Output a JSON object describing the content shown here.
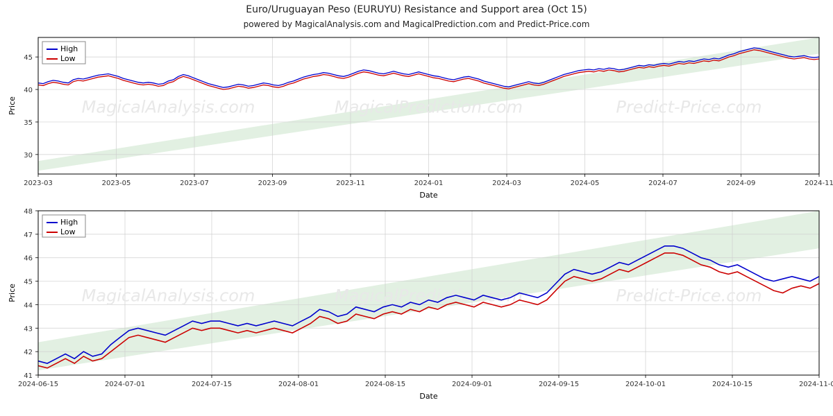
{
  "title": "Euro/Uruguayan Peso (EURUYU) Resistance and Support area (Oct 15)",
  "subtitle": "powered by MagicalAnalysis.com and MagicalPrediction.com and Predict-Price.com",
  "watermark_segments": [
    "MagicalAnalysis.com",
    "MagicalPrediction.com",
    "Predict-Price.com"
  ],
  "chart_top": {
    "type": "line",
    "background_color": "#ffffff",
    "grid_color": "#cfcfcf",
    "border_color": "#000000",
    "support_fill": "#e2f0e2",
    "xlabel": "Date",
    "ylabel": "Price",
    "ylim": [
      27,
      48
    ],
    "yticks": [
      30,
      35,
      40,
      45
    ],
    "xticks": [
      "2023-03",
      "2023-05",
      "2023-07",
      "2023-09",
      "2023-11",
      "2024-01",
      "2024-03",
      "2024-05",
      "2024-07",
      "2024-09",
      "2024-11"
    ],
    "legend": [
      "High",
      "Low"
    ],
    "colors": {
      "high": "#0000cd",
      "low": "#cc0000"
    },
    "line_width": 1.3,
    "support_band": {
      "y_left_low": 27.5,
      "y_left_high": 29.0,
      "y_right_low": 45.5,
      "y_right_high": 48.0
    },
    "series_high": [
      41.0,
      40.9,
      41.2,
      41.4,
      41.3,
      41.1,
      41.0,
      41.5,
      41.7,
      41.6,
      41.8,
      42.0,
      42.2,
      42.3,
      42.4,
      42.2,
      42.0,
      41.7,
      41.5,
      41.3,
      41.1,
      41.0,
      41.1,
      41.0,
      40.8,
      40.9,
      41.3,
      41.5,
      42.0,
      42.3,
      42.1,
      41.8,
      41.5,
      41.2,
      40.9,
      40.7,
      40.5,
      40.3,
      40.4,
      40.6,
      40.8,
      40.7,
      40.5,
      40.6,
      40.8,
      41.0,
      40.9,
      40.7,
      40.6,
      40.8,
      41.1,
      41.3,
      41.6,
      41.9,
      42.1,
      42.3,
      42.4,
      42.6,
      42.5,
      42.3,
      42.1,
      42.0,
      42.2,
      42.5,
      42.8,
      43.0,
      42.9,
      42.7,
      42.5,
      42.4,
      42.6,
      42.8,
      42.6,
      42.4,
      42.3,
      42.5,
      42.7,
      42.5,
      42.3,
      42.1,
      42.0,
      41.8,
      41.6,
      41.5,
      41.7,
      41.9,
      42.0,
      41.8,
      41.6,
      41.3,
      41.1,
      40.9,
      40.7,
      40.5,
      40.4,
      40.6,
      40.8,
      41.0,
      41.2,
      41.0,
      40.9,
      41.1,
      41.4,
      41.7,
      42.0,
      42.3,
      42.5,
      42.7,
      42.9,
      43.0,
      43.1,
      43.0,
      43.2,
      43.1,
      43.3,
      43.2,
      43.0,
      43.1,
      43.3,
      43.5,
      43.7,
      43.6,
      43.8,
      43.7,
      43.9,
      44.0,
      43.9,
      44.1,
      44.3,
      44.2,
      44.4,
      44.3,
      44.5,
      44.7,
      44.6,
      44.8,
      44.7,
      45.0,
      45.3,
      45.5,
      45.8,
      46.0,
      46.2,
      46.4,
      46.3,
      46.1,
      45.9,
      45.7,
      45.5,
      45.3,
      45.1,
      45.0,
      45.1,
      45.2,
      45.0,
      44.9,
      45.0
    ],
    "series_low": [
      40.7,
      40.6,
      40.9,
      41.1,
      41.0,
      40.8,
      40.7,
      41.2,
      41.4,
      41.3,
      41.5,
      41.7,
      41.9,
      42.0,
      42.1,
      41.9,
      41.7,
      41.4,
      41.2,
      41.0,
      40.8,
      40.7,
      40.8,
      40.7,
      40.5,
      40.6,
      41.0,
      41.2,
      41.7,
      42.0,
      41.8,
      41.5,
      41.2,
      40.9,
      40.6,
      40.4,
      40.2,
      40.0,
      40.1,
      40.3,
      40.5,
      40.4,
      40.2,
      40.3,
      40.5,
      40.7,
      40.6,
      40.4,
      40.3,
      40.5,
      40.8,
      41.0,
      41.3,
      41.6,
      41.8,
      42.0,
      42.1,
      42.3,
      42.2,
      42.0,
      41.8,
      41.7,
      41.9,
      42.2,
      42.5,
      42.7,
      42.6,
      42.4,
      42.2,
      42.1,
      42.3,
      42.5,
      42.3,
      42.1,
      42.0,
      42.2,
      42.4,
      42.2,
      42.0,
      41.8,
      41.7,
      41.5,
      41.3,
      41.2,
      41.4,
      41.6,
      41.7,
      41.5,
      41.3,
      41.0,
      40.8,
      40.6,
      40.4,
      40.2,
      40.1,
      40.3,
      40.5,
      40.7,
      40.9,
      40.7,
      40.6,
      40.8,
      41.1,
      41.4,
      41.7,
      42.0,
      42.2,
      42.4,
      42.6,
      42.7,
      42.8,
      42.7,
      42.9,
      42.8,
      43.0,
      42.9,
      42.7,
      42.8,
      43.0,
      43.2,
      43.4,
      43.3,
      43.5,
      43.4,
      43.6,
      43.7,
      43.6,
      43.8,
      44.0,
      43.9,
      44.1,
      44.0,
      44.2,
      44.4,
      44.3,
      44.5,
      44.4,
      44.7,
      45.0,
      45.2,
      45.5,
      45.7,
      45.9,
      46.1,
      46.0,
      45.8,
      45.6,
      45.4,
      45.2,
      45.0,
      44.8,
      44.7,
      44.8,
      44.9,
      44.7,
      44.6,
      44.7
    ]
  },
  "chart_bottom": {
    "type": "line",
    "background_color": "#ffffff",
    "grid_color": "#cfcfcf",
    "border_color": "#000000",
    "support_fill": "#e2f0e2",
    "xlabel": "Date",
    "ylabel": "Price",
    "ylim": [
      41,
      48
    ],
    "yticks": [
      41,
      42,
      43,
      44,
      45,
      46,
      47,
      48
    ],
    "xticks": [
      "2024-06-15",
      "2024-07-01",
      "2024-07-15",
      "2024-08-01",
      "2024-08-15",
      "2024-09-01",
      "2024-09-15",
      "2024-10-01",
      "2024-10-15",
      "2024-11-01"
    ],
    "legend": [
      "High",
      "Low"
    ],
    "colors": {
      "high": "#0000cd",
      "low": "#cc0000"
    },
    "line_width": 1.6,
    "support_band": {
      "y_left_low": 41.2,
      "y_left_high": 42.4,
      "y_right_low": 46.4,
      "y_right_high": 48.0
    },
    "series_high": [
      41.6,
      41.5,
      41.7,
      41.9,
      41.7,
      42.0,
      41.8,
      41.9,
      42.3,
      42.6,
      42.9,
      43.0,
      42.9,
      42.8,
      42.7,
      42.9,
      43.1,
      43.3,
      43.2,
      43.3,
      43.3,
      43.2,
      43.1,
      43.2,
      43.1,
      43.2,
      43.3,
      43.2,
      43.1,
      43.3,
      43.5,
      43.8,
      43.7,
      43.5,
      43.6,
      43.9,
      43.8,
      43.7,
      43.9,
      44.0,
      43.9,
      44.1,
      44.0,
      44.2,
      44.1,
      44.3,
      44.4,
      44.3,
      44.2,
      44.4,
      44.3,
      44.2,
      44.3,
      44.5,
      44.4,
      44.3,
      44.5,
      44.9,
      45.3,
      45.5,
      45.4,
      45.3,
      45.4,
      45.6,
      45.8,
      45.7,
      45.9,
      46.1,
      46.3,
      46.5,
      46.5,
      46.4,
      46.2,
      46.0,
      45.9,
      45.7,
      45.6,
      45.7,
      45.5,
      45.3,
      45.1,
      45.0,
      45.1,
      45.2,
      45.1,
      45.0,
      45.2
    ],
    "series_low": [
      41.4,
      41.3,
      41.5,
      41.7,
      41.5,
      41.8,
      41.6,
      41.7,
      42.0,
      42.3,
      42.6,
      42.7,
      42.6,
      42.5,
      42.4,
      42.6,
      42.8,
      43.0,
      42.9,
      43.0,
      43.0,
      42.9,
      42.8,
      42.9,
      42.8,
      42.9,
      43.0,
      42.9,
      42.8,
      43.0,
      43.2,
      43.5,
      43.4,
      43.2,
      43.3,
      43.6,
      43.5,
      43.4,
      43.6,
      43.7,
      43.6,
      43.8,
      43.7,
      43.9,
      43.8,
      44.0,
      44.1,
      44.0,
      43.9,
      44.1,
      44.0,
      43.9,
      44.0,
      44.2,
      44.1,
      44.0,
      44.2,
      44.6,
      45.0,
      45.2,
      45.1,
      45.0,
      45.1,
      45.3,
      45.5,
      45.4,
      45.6,
      45.8,
      46.0,
      46.2,
      46.2,
      46.1,
      45.9,
      45.7,
      45.6,
      45.4,
      45.3,
      45.4,
      45.2,
      45.0,
      44.8,
      44.6,
      44.5,
      44.7,
      44.8,
      44.7,
      44.9
    ]
  }
}
